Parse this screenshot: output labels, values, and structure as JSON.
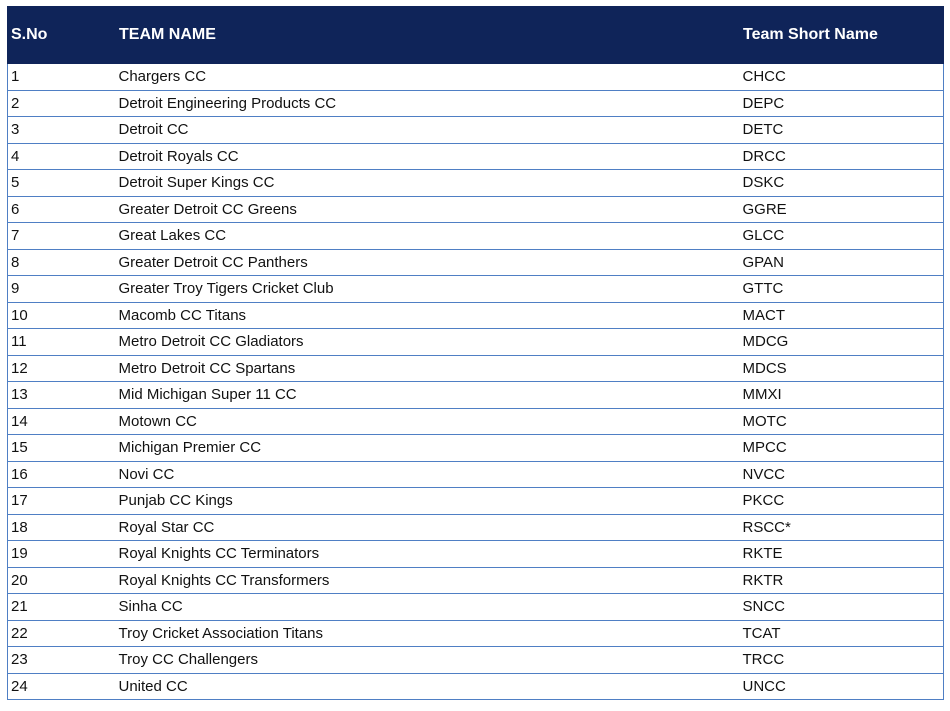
{
  "colors": {
    "header_bg": "#0f2459",
    "header_text": "#ffffff",
    "row_border": "#4f7fc4"
  },
  "table": {
    "headers": {
      "sno": "S.No",
      "team_name": "TEAM NAME",
      "short_name": "Team Short Name"
    },
    "rows": [
      {
        "sno": "1",
        "name": "Chargers CC",
        "short": "CHCC"
      },
      {
        "sno": "2",
        "name": "Detroit Engineering Products CC",
        "short": "DEPC"
      },
      {
        "sno": "3",
        "name": "Detroit CC",
        "short": "DETC"
      },
      {
        "sno": "4",
        "name": "Detroit Royals CC",
        "short": "DRCC"
      },
      {
        "sno": "5",
        "name": "Detroit Super Kings CC",
        "short": "DSKC"
      },
      {
        "sno": "6",
        "name": "Greater Detroit CC Greens",
        "short": "GGRE"
      },
      {
        "sno": "7",
        "name": "Great Lakes CC",
        "short": "GLCC"
      },
      {
        "sno": "8",
        "name": "Greater Detroit CC Panthers",
        "short": "GPAN"
      },
      {
        "sno": "9",
        "name": "Greater Troy Tigers Cricket Club",
        "short": "GTTC"
      },
      {
        "sno": "10",
        "name": "Macomb CC Titans",
        "short": "MACT"
      },
      {
        "sno": "11",
        "name": "Metro Detroit CC Gladiators",
        "short": "MDCG"
      },
      {
        "sno": "12",
        "name": "Metro Detroit CC Spartans",
        "short": "MDCS"
      },
      {
        "sno": "13",
        "name": "Mid Michigan Super 11 CC",
        "short": "MMXI"
      },
      {
        "sno": "14",
        "name": "Motown CC",
        "short": "MOTC"
      },
      {
        "sno": "15",
        "name": "Michigan Premier CC",
        "short": "MPCC"
      },
      {
        "sno": "16",
        "name": "Novi CC",
        "short": "NVCC"
      },
      {
        "sno": "17",
        "name": "Punjab CC Kings",
        "short": "PKCC"
      },
      {
        "sno": "18",
        "name": "Royal Star CC",
        "short": "RSCC*"
      },
      {
        "sno": "19",
        "name": "Royal Knights CC Terminators",
        "short": "RKTE"
      },
      {
        "sno": "20",
        "name": "Royal Knights CC Transformers",
        "short": "RKTR"
      },
      {
        "sno": "21",
        "name": "Sinha CC",
        "short": "SNCC"
      },
      {
        "sno": "22",
        "name": "Troy Cricket Association Titans",
        "short": "TCAT"
      },
      {
        "sno": "23",
        "name": "Troy CC Challengers",
        "short": "TRCC"
      },
      {
        "sno": "24",
        "name": "United CC",
        "short": "UNCC"
      }
    ]
  }
}
